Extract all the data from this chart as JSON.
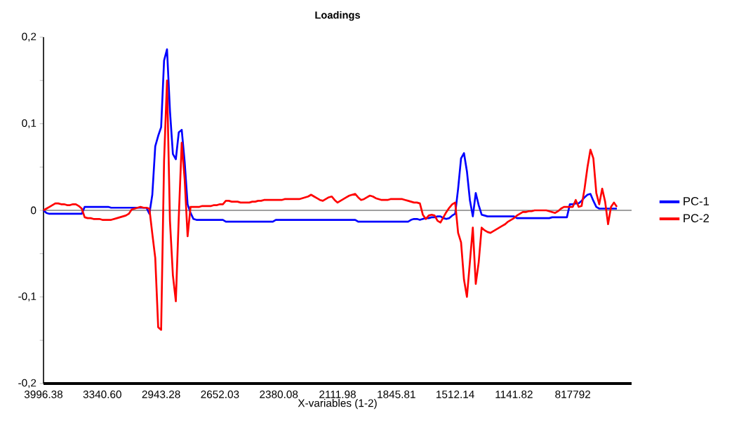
{
  "chart_data": {
    "type": "line",
    "title": "Loadings",
    "xlabel": "X-variables (1-2)",
    "categories": [
      "3996.38",
      null,
      null,
      null,
      null,
      null,
      null,
      null,
      null,
      null,
      null,
      null,
      null,
      null,
      null,
      null,
      null,
      null,
      null,
      null,
      "3340.60",
      null,
      null,
      null,
      null,
      null,
      null,
      null,
      null,
      null,
      null,
      null,
      null,
      null,
      null,
      null,
      null,
      null,
      null,
      null,
      "2943.28",
      null,
      null,
      null,
      null,
      null,
      null,
      null,
      null,
      null,
      null,
      null,
      null,
      null,
      null,
      null,
      null,
      null,
      null,
      null,
      "2652.03",
      null,
      null,
      null,
      null,
      null,
      null,
      null,
      null,
      null,
      null,
      null,
      null,
      null,
      null,
      null,
      null,
      null,
      null,
      null,
      "2380.08",
      null,
      null,
      null,
      null,
      null,
      null,
      null,
      null,
      null,
      null,
      null,
      null,
      null,
      null,
      null,
      null,
      null,
      null,
      null,
      "2111.98",
      null,
      null,
      null,
      null,
      null,
      null,
      null,
      null,
      null,
      null,
      null,
      null,
      null,
      null,
      null,
      null,
      null,
      null,
      null,
      "1845.81",
      null,
      null,
      null,
      null,
      null,
      null,
      null,
      null,
      null,
      null,
      null,
      null,
      null,
      null,
      null,
      null,
      null,
      null,
      null,
      "1512.14",
      null,
      null,
      null,
      null,
      null,
      null,
      null,
      null,
      null,
      null,
      null,
      null,
      null,
      null,
      null,
      null,
      null,
      null,
      null,
      "1141.82",
      null,
      null,
      null,
      null,
      null,
      null,
      null,
      null,
      null,
      null,
      null,
      null,
      null,
      null,
      null,
      null,
      null,
      null,
      null,
      "817792",
      null,
      null,
      null,
      null,
      null,
      null,
      null,
      null,
      null,
      null,
      null,
      null,
      null,
      null,
      null
    ],
    "ylim": [
      -0.2,
      0.2
    ],
    "yticks": [
      {
        "value": -0.2,
        "label": "-0,2"
      },
      {
        "value": -0.15,
        "label": null
      },
      {
        "value": -0.1,
        "label": "-0,1"
      },
      {
        "value": -0.05,
        "label": null
      },
      {
        "value": 0,
        "label": "0"
      },
      {
        "value": 0.05,
        "label": null
      },
      {
        "value": 0.1,
        "label": "0,1"
      },
      {
        "value": 0.15,
        "label": null
      },
      {
        "value": 0.2,
        "label": "0,2"
      }
    ],
    "legend": "right",
    "grid": false,
    "marker": "none",
    "line_style": "solid",
    "ref_lines": [
      {
        "axis": "y",
        "value": 0,
        "color": "#808080"
      }
    ],
    "series": [
      {
        "name": "PC-1",
        "color": "#0000ff",
        "values": [
          0,
          -0.003,
          -0.004,
          -0.004,
          -0.004,
          -0.004,
          -0.004,
          -0.004,
          -0.004,
          -0.004,
          -0.004,
          -0.004,
          -0.004,
          -0.004,
          0.004,
          0.004,
          0.004,
          0.004,
          0.004,
          0.004,
          0.004,
          0.004,
          0.004,
          0.003,
          0.003,
          0.003,
          0.003,
          0.003,
          0.003,
          0.003,
          0.003,
          0.003,
          0.003,
          0.003,
          0.003,
          0.003,
          -0.004,
          0.018,
          0.074,
          0.086,
          0.096,
          0.173,
          0.186,
          0.115,
          0.065,
          0.059,
          0.09,
          0.093,
          0.056,
          0.007,
          -0.003,
          -0.01,
          -0.011,
          -0.011,
          -0.011,
          -0.011,
          -0.011,
          -0.011,
          -0.011,
          -0.011,
          -0.011,
          -0.011,
          -0.013,
          -0.013,
          -0.013,
          -0.013,
          -0.013,
          -0.013,
          -0.013,
          -0.013,
          -0.013,
          -0.013,
          -0.013,
          -0.013,
          -0.013,
          -0.013,
          -0.013,
          -0.013,
          -0.013,
          -0.011,
          -0.011,
          -0.011,
          -0.011,
          -0.011,
          -0.011,
          -0.011,
          -0.011,
          -0.011,
          -0.011,
          -0.011,
          -0.011,
          -0.011,
          -0.011,
          -0.011,
          -0.011,
          -0.011,
          -0.011,
          -0.011,
          -0.011,
          -0.011,
          -0.011,
          -0.011,
          -0.011,
          -0.011,
          -0.011,
          -0.011,
          -0.011,
          -0.013,
          -0.013,
          -0.013,
          -0.013,
          -0.013,
          -0.013,
          -0.013,
          -0.013,
          -0.013,
          -0.013,
          -0.013,
          -0.013,
          -0.013,
          -0.013,
          -0.013,
          -0.013,
          -0.013,
          -0.013,
          -0.011,
          -0.01,
          -0.01,
          -0.011,
          -0.01,
          -0.009,
          -0.009,
          -0.008,
          -0.008,
          -0.007,
          -0.007,
          -0.009,
          -0.01,
          -0.009,
          -0.006,
          -0.004,
          0.025,
          0.06,
          0.066,
          0.045,
          0.012,
          -0.007,
          0.02,
          0.006,
          -0.005,
          -0.006,
          -0.007,
          -0.007,
          -0.007,
          -0.007,
          -0.007,
          -0.007,
          -0.007,
          -0.007,
          -0.007,
          -0.007,
          -0.009,
          -0.009,
          -0.009,
          -0.009,
          -0.009,
          -0.009,
          -0.009,
          -0.009,
          -0.009,
          -0.009,
          -0.009,
          -0.009,
          -0.008,
          -0.008,
          -0.008,
          -0.008,
          -0.008,
          -0.008,
          0.007,
          0.007,
          0.008,
          0.008,
          0.011,
          0.015,
          0.018,
          0.019,
          0.011,
          0.004,
          0.002,
          0.002,
          0.002,
          0.002,
          0.002,
          0.002,
          0.002
        ]
      },
      {
        "name": "PC-2",
        "color": "#ff0000",
        "values": [
          0,
          0.002,
          0.004,
          0.006,
          0.008,
          0.008,
          0.007,
          0.007,
          0.006,
          0.006,
          0.007,
          0.007,
          0.005,
          0.002,
          -0.008,
          -0.009,
          -0.009,
          -0.01,
          -0.01,
          -0.01,
          -0.011,
          -0.011,
          -0.011,
          -0.011,
          -0.01,
          -0.009,
          -0.008,
          -0.007,
          -0.006,
          -0.004,
          0.001,
          0.002,
          0.003,
          0.004,
          0.003,
          0.003,
          0.002,
          -0.027,
          -0.055,
          -0.135,
          -0.138,
          0.057,
          0.15,
          -0.012,
          -0.075,
          -0.105,
          -0.008,
          0.078,
          0.036,
          -0.03,
          0.004,
          0.004,
          0.004,
          0.004,
          0.005,
          0.005,
          0.005,
          0.005,
          0.006,
          0.006,
          0.007,
          0.007,
          0.011,
          0.011,
          0.01,
          0.01,
          0.01,
          0.009,
          0.009,
          0.009,
          0.009,
          0.01,
          0.01,
          0.011,
          0.011,
          0.012,
          0.012,
          0.012,
          0.012,
          0.012,
          0.012,
          0.012,
          0.013,
          0.013,
          0.013,
          0.013,
          0.013,
          0.013,
          0.014,
          0.015,
          0.016,
          0.018,
          0.016,
          0.014,
          0.012,
          0.011,
          0.013,
          0.015,
          0.016,
          0.012,
          0.009,
          0.011,
          0.013,
          0.015,
          0.017,
          0.018,
          0.019,
          0.015,
          0.012,
          0.013,
          0.015,
          0.017,
          0.016,
          0.014,
          0.013,
          0.012,
          0.012,
          0.012,
          0.013,
          0.013,
          0.013,
          0.013,
          0.013,
          0.012,
          0.011,
          0.01,
          0.009,
          0.009,
          0.008,
          -0.005,
          -0.01,
          -0.006,
          -0.005,
          -0.006,
          -0.012,
          -0.014,
          -0.008,
          -0.002,
          0.003,
          0.007,
          0.009,
          -0.026,
          -0.037,
          -0.08,
          -0.1,
          -0.06,
          -0.02,
          -0.085,
          -0.06,
          -0.02,
          -0.023,
          -0.025,
          -0.026,
          -0.024,
          -0.022,
          -0.02,
          -0.018,
          -0.016,
          -0.013,
          -0.011,
          -0.009,
          -0.006,
          -0.004,
          -0.002,
          -0.002,
          -0.001,
          -0.001,
          0,
          0,
          0,
          0,
          0,
          -0.001,
          -0.002,
          -0.003,
          -0.001,
          0.002,
          0.004,
          0.004,
          0.004,
          0.004,
          0.012,
          0.004,
          0.005,
          0.025,
          0.05,
          0.07,
          0.06,
          0.02,
          0.007,
          0.025,
          0.01,
          -0.016,
          0.004,
          0.009,
          0.004
        ]
      }
    ]
  }
}
